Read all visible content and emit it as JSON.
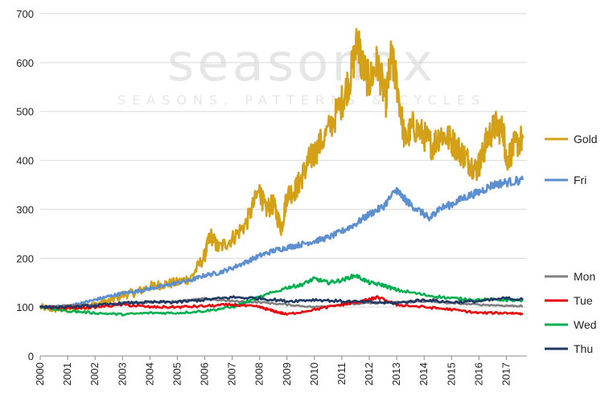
{
  "watermark": {
    "brand": "seasonax",
    "tagline": "SEASONS, PATTERNS & CYCLES"
  },
  "chart_data": {
    "type": "line",
    "title": "",
    "xlabel": "",
    "ylabel": "",
    "xlim": [
      2000,
      2017.75
    ],
    "ylim": [
      0,
      700
    ],
    "grid": "horizontal",
    "legend": "right",
    "x_ticks": [
      "2000",
      "2001",
      "2002",
      "2003",
      "2004",
      "2005",
      "2006",
      "2007",
      "2008",
      "2009",
      "2010",
      "2011",
      "2012",
      "2013",
      "2014",
      "2015",
      "2016",
      "2017"
    ],
    "y_ticks": [
      "0",
      "100",
      "200",
      "300",
      "400",
      "500",
      "600",
      "700"
    ],
    "series": [
      {
        "name": "Gold",
        "color": "#d4a017",
        "x": [
          2000,
          2000.5,
          2001,
          2001.5,
          2002,
          2002.5,
          2003,
          2003.5,
          2004,
          2004.5,
          2005,
          2005.5,
          2006,
          2006.2,
          2006.5,
          2007,
          2007.5,
          2008,
          2008.2,
          2008.5,
          2008.8,
          2009,
          2009.3,
          2009.5,
          2009.8,
          2010,
          2010.5,
          2011,
          2011.3,
          2011.6,
          2011.7,
          2012,
          2012.3,
          2012.6,
          2012.8,
          2013,
          2013.3,
          2013.6,
          2014,
          2014.3,
          2014.6,
          2015,
          2015.3,
          2015.6,
          2015.9,
          2016.1,
          2016.3,
          2016.6,
          2016.9,
          2017,
          2017.3,
          2017.6
        ],
        "values": [
          100,
          95,
          98,
          100,
          105,
          112,
          125,
          130,
          142,
          147,
          150,
          160,
          205,
          248,
          220,
          240,
          270,
          340,
          300,
          310,
          260,
          330,
          340,
          360,
          400,
          415,
          460,
          520,
          570,
          650,
          600,
          560,
          600,
          520,
          610,
          560,
          440,
          470,
          450,
          430,
          455,
          440,
          420,
          400,
          380,
          405,
          445,
          470,
          460,
          400,
          430,
          445
        ]
      },
      {
        "name": "Fri",
        "color": "#5b8fd0",
        "x": [
          2000,
          2000.5,
          2001,
          2001.5,
          2002,
          2002.5,
          2003,
          2003.5,
          2004,
          2004.5,
          2005,
          2005.5,
          2006,
          2006.5,
          2007,
          2007.5,
          2008,
          2008.5,
          2009,
          2009.5,
          2010,
          2010.5,
          2011,
          2011.5,
          2012,
          2012.5,
          2013,
          2013.2,
          2013.5,
          2014,
          2014.2,
          2014.5,
          2015,
          2015.5,
          2016,
          2016.5,
          2017,
          2017.6
        ],
        "values": [
          100,
          100,
          102,
          108,
          115,
          122,
          128,
          132,
          138,
          143,
          150,
          155,
          165,
          170,
          180,
          192,
          205,
          215,
          222,
          228,
          235,
          242,
          255,
          270,
          290,
          305,
          340,
          325,
          310,
          290,
          280,
          300,
          310,
          325,
          335,
          350,
          355,
          360
        ]
      },
      {
        "name": "Mon",
        "color": "#808080",
        "x": [
          2000,
          2001,
          2002,
          2003,
          2004,
          2005,
          2006,
          2007,
          2008,
          2009,
          2010,
          2011,
          2012,
          2013,
          2014,
          2015,
          2016,
          2017,
          2017.6
        ],
        "values": [
          100,
          103,
          105,
          108,
          110,
          112,
          117,
          112,
          110,
          105,
          100,
          105,
          108,
          110,
          112,
          108,
          105,
          103,
          102
        ]
      },
      {
        "name": "Tue",
        "color": "#e8000b",
        "x": [
          2000,
          2001,
          2002,
          2003,
          2004,
          2005,
          2006,
          2007,
          2008,
          2008.5,
          2009,
          2010,
          2011,
          2011.5,
          2012,
          2012.3,
          2013,
          2014,
          2015,
          2016,
          2017,
          2017.6
        ],
        "values": [
          100,
          98,
          100,
          105,
          100,
          100,
          102,
          105,
          100,
          92,
          85,
          95,
          105,
          110,
          115,
          120,
          105,
          100,
          95,
          88,
          88,
          87
        ]
      },
      {
        "name": "Wed",
        "color": "#00b050",
        "x": [
          2000,
          2001,
          2002,
          2003,
          2004,
          2005,
          2006,
          2007,
          2008,
          2009,
          2009.5,
          2010,
          2010.5,
          2011,
          2011.5,
          2012,
          2012.5,
          2013,
          2014,
          2015,
          2016,
          2017,
          2017.6
        ],
        "values": [
          100,
          92,
          88,
          85,
          88,
          88,
          92,
          100,
          120,
          140,
          145,
          158,
          150,
          155,
          165,
          150,
          145,
          135,
          125,
          118,
          115,
          115,
          112
        ]
      },
      {
        "name": "Thu",
        "color": "#1f3864",
        "x": [
          2000,
          2001,
          2002,
          2003,
          2004,
          2005,
          2006,
          2007,
          2008,
          2009,
          2010,
          2011,
          2012,
          2013,
          2014,
          2015,
          2016,
          2017,
          2017.6
        ],
        "values": [
          100,
          100,
          103,
          108,
          110,
          110,
          115,
          120,
          118,
          112,
          115,
          112,
          110,
          108,
          115,
          110,
          112,
          118,
          115
        ]
      }
    ]
  }
}
